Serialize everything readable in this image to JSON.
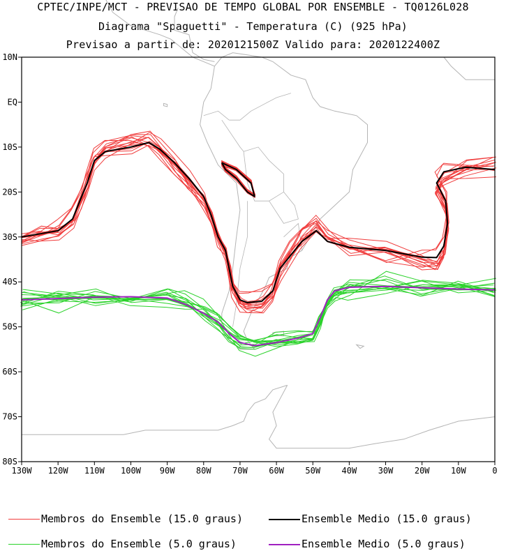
{
  "title": {
    "line1": "CPTEC/INPE/MCT - PREVISAO DE TEMPO GLOBAL POR ENSEMBLE - TQ0126L028",
    "line2": "Diagrama \"Spaguetti\" - Temperatura (C) (925 hPa)",
    "line3": "Previsao a partir de: 2020121500Z  Valido para: 2020122400Z"
  },
  "colors": {
    "members_15": "#f03c3c",
    "mean_15": "#000000",
    "members_5": "#2ad22a",
    "mean_5": "#a020c0",
    "coast": "#b4b4b4"
  },
  "legend": [
    {
      "label": "Membros do Ensemble (15.0 graus)",
      "color": "#f03c3c"
    },
    {
      "label": "Ensemble Medio (15.0 graus)",
      "color": "#000000"
    },
    {
      "label": "Membros do Ensemble (5.0 graus)",
      "color": "#2ad22a"
    },
    {
      "label": "Ensemble Medio (5.0 graus)",
      "color": "#a020c0"
    }
  ],
  "chart_data": {
    "type": "line",
    "subtype": "spaghetti map (isotherms)",
    "variable": "Temperatura (C) 925 hPa",
    "xlim": [
      -130,
      0
    ],
    "ylim": [
      -80,
      10
    ],
    "x_ticks": [
      {
        "value": -130,
        "label": "130W"
      },
      {
        "value": -120,
        "label": "120W"
      },
      {
        "value": -110,
        "label": "110W"
      },
      {
        "value": -100,
        "label": "100W"
      },
      {
        "value": -90,
        "label": "90W"
      },
      {
        "value": -80,
        "label": "80W"
      },
      {
        "value": -70,
        "label": "70W"
      },
      {
        "value": -60,
        "label": "60W"
      },
      {
        "value": -50,
        "label": "50W"
      },
      {
        "value": -40,
        "label": "40W"
      },
      {
        "value": -30,
        "label": "30W"
      },
      {
        "value": -20,
        "label": "20W"
      },
      {
        "value": -10,
        "label": "10W"
      },
      {
        "value": 0,
        "label": "0"
      }
    ],
    "y_ticks": [
      {
        "value": 10,
        "label": "10N"
      },
      {
        "value": 0,
        "label": "EQ"
      },
      {
        "value": -10,
        "label": "10S"
      },
      {
        "value": -20,
        "label": "20S"
      },
      {
        "value": -30,
        "label": "30S"
      },
      {
        "value": -40,
        "label": "40S"
      },
      {
        "value": -50,
        "label": "50S"
      },
      {
        "value": -60,
        "label": "60S"
      },
      {
        "value": -70,
        "label": "70S"
      },
      {
        "value": -80,
        "label": "80S"
      }
    ],
    "series": [
      {
        "name": "Ensemble Medio (15.0 graus)",
        "kind": "mean",
        "color": "#000000",
        "segments": [
          [
            [
              -130,
              -30
            ],
            [
              -125,
              -29.3
            ],
            [
              -120,
              -28.6
            ],
            [
              -116,
              -26
            ],
            [
              -114,
              -22
            ],
            [
              -112,
              -18
            ],
            [
              -110,
              -13
            ],
            [
              -107,
              -11
            ],
            [
              -100,
              -10
            ],
            [
              -95,
              -9
            ],
            [
              -92,
              -10.5
            ],
            [
              -88,
              -13.5
            ],
            [
              -84,
              -17
            ],
            [
              -80,
              -21
            ],
            [
              -78,
              -25
            ],
            [
              -76,
              -30
            ],
            [
              -74,
              -33
            ],
            [
              -73,
              -37
            ],
            [
              -72,
              -41
            ],
            [
              -70,
              -44
            ],
            [
              -68,
              -44.6
            ],
            [
              -64,
              -44.3
            ],
            [
              -61,
              -42
            ],
            [
              -59,
              -37
            ],
            [
              -56,
              -34
            ],
            [
              -53,
              -31
            ],
            [
              -49,
              -28.6
            ],
            [
              -46,
              -31
            ],
            [
              -40,
              -32.3
            ],
            [
              -30,
              -33
            ],
            [
              -20,
              -34.5
            ],
            [
              -16,
              -34.6
            ],
            [
              -14,
              -32
            ],
            [
              -13,
              -27
            ],
            [
              -13.5,
              -22
            ],
            [
              -16,
              -18
            ],
            [
              -14,
              -15.5
            ],
            [
              -8,
              -14.5
            ],
            [
              0,
              -15
            ]
          ],
          [
            [
              -75,
              -13.5
            ],
            [
              -71,
              -15
            ],
            [
              -67,
              -18
            ],
            [
              -66,
              -21
            ],
            [
              -68,
              -20
            ],
            [
              -71,
              -17
            ],
            [
              -74,
              -15
            ],
            [
              -75,
              -13.5
            ]
          ]
        ]
      },
      {
        "name": "Ensemble Medio (5.0 graus)",
        "kind": "mean",
        "color": "#a020c0",
        "segments": [
          [
            [
              -130,
              -44
            ],
            [
              -120,
              -43.7
            ],
            [
              -110,
              -43.4
            ],
            [
              -100,
              -43.3
            ],
            [
              -90,
              -43.6
            ],
            [
              -85,
              -45
            ],
            [
              -80,
              -47
            ],
            [
              -76,
              -49
            ],
            [
              -73,
              -51.5
            ],
            [
              -70,
              -53.5
            ],
            [
              -66,
              -54.2
            ],
            [
              -60,
              -53.5
            ],
            [
              -54,
              -52.5
            ],
            [
              -50,
              -51.5
            ],
            [
              -48,
              -48
            ],
            [
              -46,
              -44
            ],
            [
              -44,
              -42
            ],
            [
              -40,
              -41.2
            ],
            [
              -30,
              -41
            ],
            [
              -20,
              -41.3
            ],
            [
              -10,
              -41.6
            ],
            [
              0,
              -41.8
            ]
          ]
        ]
      }
    ]
  }
}
